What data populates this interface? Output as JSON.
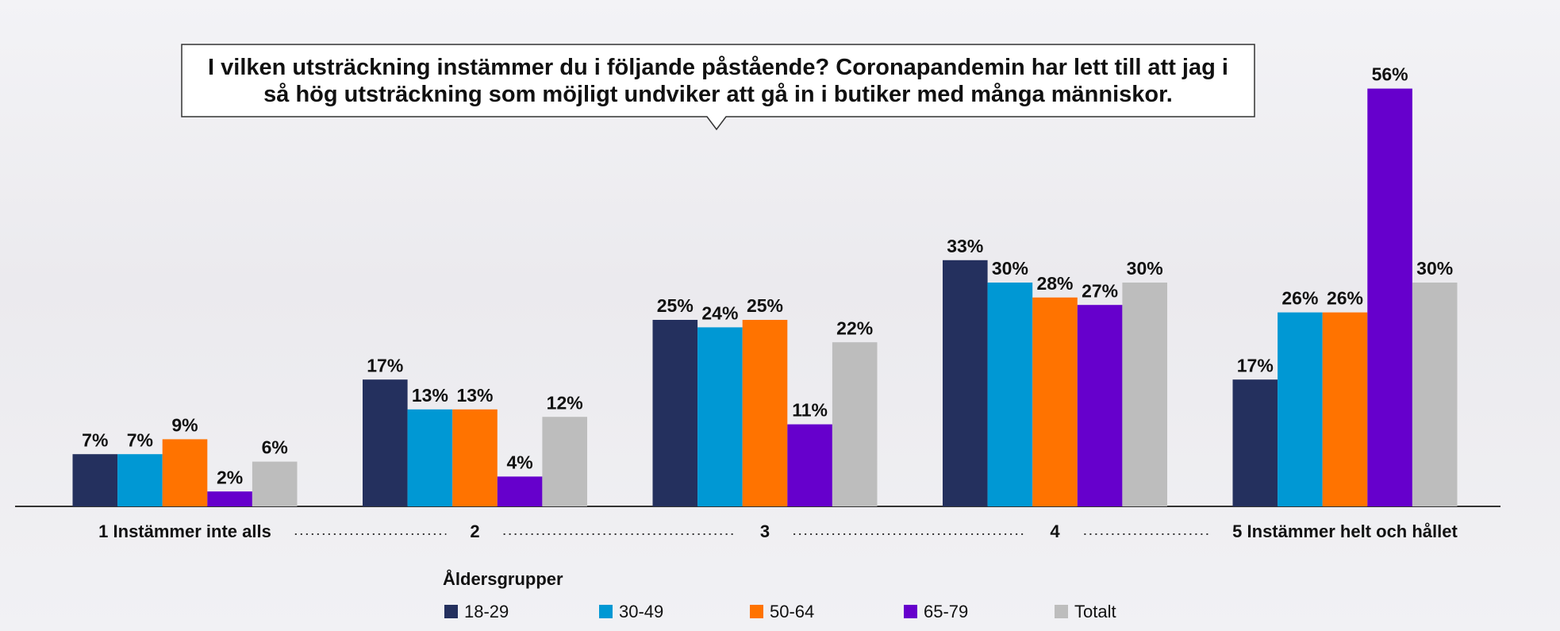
{
  "chart_data": {
    "type": "bar",
    "title": "I vilken utsträckning instämmer du i följande påstående? Coronapandemin har lett till att jag i så hög utsträckning som möjligt undviker att gå in i butiker med många människor.",
    "categories": [
      "1 Instämmer inte alls",
      "2",
      "3",
      "4",
      "5 Instämmer helt och hållet"
    ],
    "legend_title": "Åldersgrupper",
    "series": [
      {
        "name": "18-29",
        "color": "#24305e",
        "values": [
          7,
          17,
          25,
          33,
          17
        ],
        "value_labels": [
          "7%",
          "17%",
          "25%",
          "33%",
          "17%"
        ]
      },
      {
        "name": "30-49",
        "color": "#0098d4",
        "values": [
          7,
          13,
          24,
          30,
          26
        ],
        "value_labels": [
          "7%",
          "13%",
          "24%",
          "30%",
          "26%"
        ]
      },
      {
        "name": "50-64",
        "color": "#ff7300",
        "values": [
          9,
          13,
          25,
          28,
          26
        ],
        "value_labels": [
          "9%",
          "13%",
          "25%",
          "28%",
          "26%"
        ]
      },
      {
        "name": "65-79",
        "color": "#6600cc",
        "values": [
          2,
          4,
          11,
          27,
          56
        ],
        "value_labels": [
          "2%",
          "4%",
          "11%",
          "27%",
          "56%"
        ]
      },
      {
        "name": "Totalt",
        "color": "#bdbdbd",
        "values": [
          6,
          12,
          22,
          30,
          30
        ],
        "value_labels": [
          "6%",
          "12%",
          "22%",
          "30%",
          "30%"
        ]
      }
    ]
  }
}
